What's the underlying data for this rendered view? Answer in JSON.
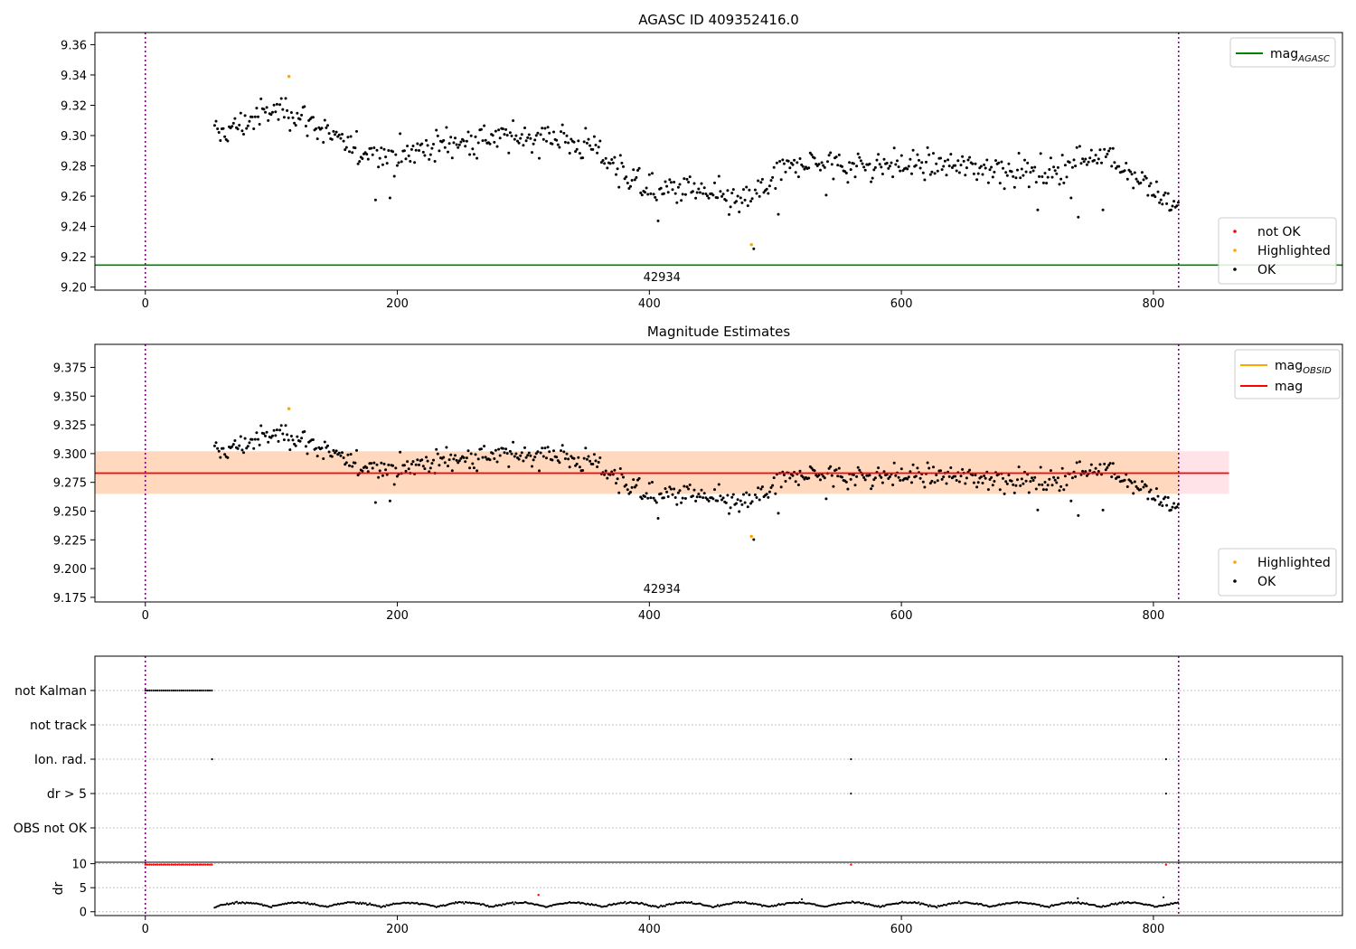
{
  "chart_data": [
    {
      "type": "scatter",
      "title": "AGASC ID 409352416.0",
      "xlim": [
        -40,
        950
      ],
      "ylim": [
        9.198,
        9.368
      ],
      "xticks": [
        0,
        200,
        400,
        600,
        800
      ],
      "yticks": [
        9.2,
        9.22,
        9.24,
        9.26,
        9.28,
        9.3,
        9.32,
        9.34,
        9.36
      ],
      "ytick_labels": [
        "9.20",
        "9.22",
        "9.24",
        "9.26",
        "9.28",
        "9.30",
        "9.32",
        "9.34",
        "9.36"
      ],
      "obsid_label": "42934",
      "obsid_label_x": 410,
      "vlines": [
        0,
        820
      ],
      "hline": {
        "name_base": "mag",
        "name_sub": "AGASC",
        "y": 9.2145,
        "color": "#008000"
      },
      "legend_top": {
        "placement": "top-right",
        "entries": [
          {
            "kind": "line",
            "base": "mag",
            "sub": "AGASC",
            "color": "#008000"
          }
        ]
      },
      "legend_bottom": {
        "placement": "bottom-right",
        "entries": [
          {
            "kind": "dot",
            "label": "not OK",
            "color": "#ff0000"
          },
          {
            "kind": "dot",
            "label": "Highlighted",
            "color": "#ffa500"
          },
          {
            "kind": "dot",
            "label": "OK",
            "color": "#000000"
          }
        ]
      },
      "highlighted": [
        {
          "x": 114,
          "y": 9.339
        },
        {
          "x": 481,
          "y": 9.228
        }
      ],
      "trend": {
        "x": [
          55,
          70,
          90,
          110,
          130,
          160,
          200,
          240,
          280,
          320,
          355,
          375,
          400,
          430,
          470,
          490,
          520,
          560,
          600,
          640,
          680,
          720,
          760,
          790,
          820
        ],
        "y": [
          9.3,
          9.305,
          9.313,
          9.318,
          9.31,
          9.292,
          9.287,
          9.295,
          9.298,
          9.3,
          9.292,
          9.28,
          9.262,
          9.265,
          9.255,
          9.265,
          9.283,
          9.28,
          9.281,
          9.28,
          9.278,
          9.275,
          9.29,
          9.27,
          9.25
        ]
      }
    },
    {
      "type": "scatter",
      "title": "Magnitude Estimates",
      "xlim": [
        -40,
        950
      ],
      "ylim": [
        9.171,
        9.395
      ],
      "xticks": [
        0,
        200,
        400,
        600,
        800
      ],
      "yticks": [
        9.175,
        9.2,
        9.225,
        9.25,
        9.275,
        9.3,
        9.325,
        9.35,
        9.375
      ],
      "ytick_labels": [
        "9.175",
        "9.200",
        "9.225",
        "9.250",
        "9.275",
        "9.300",
        "9.325",
        "9.350",
        "9.375"
      ],
      "obsid_label": "42934",
      "obsid_label_x": 410,
      "vlines": [
        0,
        820
      ],
      "mag": {
        "y": 9.283,
        "band": [
          9.265,
          9.302
        ],
        "color": "#ff0000",
        "band_color": "#ffc0cb"
      },
      "mag_obsid": {
        "y": 9.283,
        "band": [
          9.265,
          9.302
        ],
        "x_range": [
          -40,
          860
        ],
        "color": "#ffa500"
      },
      "legend_top": {
        "placement": "top-right",
        "entries": [
          {
            "kind": "line",
            "base": "mag",
            "sub": "OBSID",
            "color": "#ffa500"
          },
          {
            "kind": "line",
            "base": "mag",
            "sub": "",
            "color": "#ff0000"
          }
        ]
      },
      "legend_bottom": {
        "placement": "bottom-right",
        "entries": [
          {
            "kind": "dot",
            "label": "Highlighted",
            "color": "#ffa500"
          },
          {
            "kind": "dot",
            "label": "OK",
            "color": "#000000"
          }
        ]
      },
      "highlighted": [
        {
          "x": 114,
          "y": 9.339
        },
        {
          "x": 481,
          "y": 9.228
        }
      ]
    },
    {
      "type": "scatter",
      "title": "",
      "xlim": [
        -40,
        950
      ],
      "xticks": [
        0,
        200,
        400,
        600,
        800
      ],
      "vlines": [
        0,
        820
      ],
      "flag_rows": [
        "not Kalman",
        "not track",
        "Ion. rad.",
        "dr > 5",
        "OBS not OK"
      ],
      "flags": {
        "not Kalman": {
          "x_range": [
            0,
            53
          ]
        },
        "not track": {
          "x_range": null
        },
        "Ion. rad.": {
          "points": [
            53,
            560,
            810
          ]
        },
        "dr > 5": {
          "points": [
            560,
            810
          ]
        },
        "OBS not OK": {
          "points": []
        }
      },
      "dr": {
        "ylabel": "dr",
        "yticks": [
          0,
          5,
          10
        ],
        "ylim": [
          -0.8,
          10.3
        ],
        "clipped_range": [
          0,
          53
        ],
        "clipped_value": 9.8,
        "outliers": [
          {
            "x": 312,
            "y": 3.5
          },
          {
            "x": 560,
            "y": 9.8
          },
          {
            "x": 810,
            "y": 9.8
          }
        ],
        "spikes": [
          {
            "x": 521,
            "y": 2.6
          },
          {
            "x": 740,
            "y": 2.8
          },
          {
            "x": 808,
            "y": 3.0
          }
        ]
      }
    }
  ]
}
